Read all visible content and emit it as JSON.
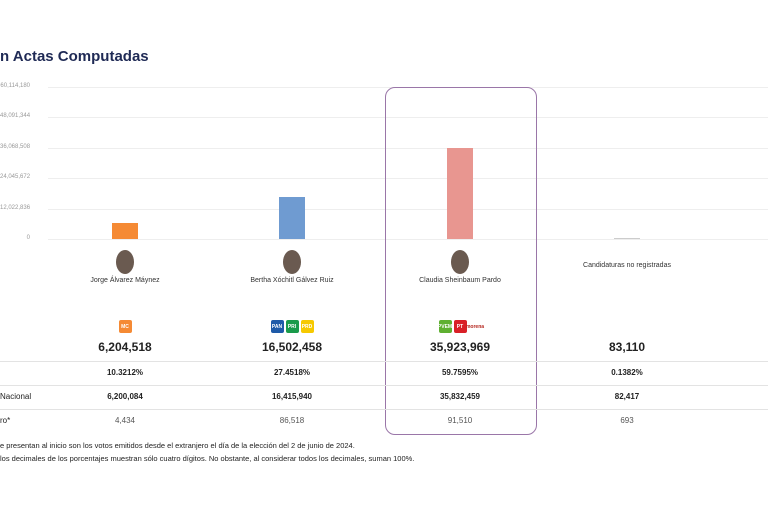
{
  "title": "n Actas Computadas",
  "chart_data": {
    "type": "bar",
    "yticks": [
      "60,114,180",
      "48,091,344",
      "36,068,508",
      "24,045,672",
      "12,022,836",
      "0"
    ],
    "ylim": [
      0,
      60114180
    ],
    "grid": true,
    "categories": [
      "Jorge Álvarez Máynez",
      "Bertha Xóchitl Gálvez Ruiz",
      "Claudia Sheinbaum Pardo",
      "Candidaturas no registradas"
    ],
    "values": [
      6204518,
      16502458,
      35923969,
      83110
    ],
    "colors": [
      "#f58a34",
      "#6f9bd1",
      "#e89690",
      "#cccccc"
    ]
  },
  "candidates": [
    {
      "name": "Jorge Álvarez Máynez",
      "logos": [
        {
          "label": "MC",
          "color": "#f58a34"
        }
      ],
      "votes": "6,204,518",
      "pct": "10.3212%",
      "nacional": "6,200,084",
      "extranjero": "4,434"
    },
    {
      "name": "Bertha Xóchitl Gálvez Ruiz",
      "logos": [
        {
          "label": "PAN",
          "color": "#1e5aa8"
        },
        {
          "label": "PRI",
          "color": "#1a9b4b"
        },
        {
          "label": "PRD",
          "color": "#f6c900"
        }
      ],
      "votes": "16,502,458",
      "pct": "27.4518%",
      "nacional": "16,415,940",
      "extranjero": "86,518"
    },
    {
      "name": "Claudia Sheinbaum Pardo",
      "logos": [
        {
          "label": "PVEM",
          "color": "#5fb031"
        },
        {
          "label": "PT",
          "color": "#d92027"
        },
        {
          "label": "morena",
          "color": "#fff"
        }
      ],
      "votes": "35,923,969",
      "pct": "59.7595%",
      "nacional": "35,832,459",
      "extranjero": "91,510"
    },
    {
      "name": "Candidaturas no registradas",
      "logos": [],
      "votes": "83,110",
      "pct": "0.1382%",
      "nacional": "82,417",
      "extranjero": "693"
    }
  ],
  "row_labels": {
    "nacional": "Nacional",
    "extranjero": "ro*"
  },
  "notes": [
    "e presentan al inicio son los votos emitidos desde el extranjero el día de la elección del 2 de junio de 2024.",
    "los decimales de los porcentajes muestran sólo cuatro dígitos. No obstante, al considerar todos los decimales, suman 100%."
  ]
}
